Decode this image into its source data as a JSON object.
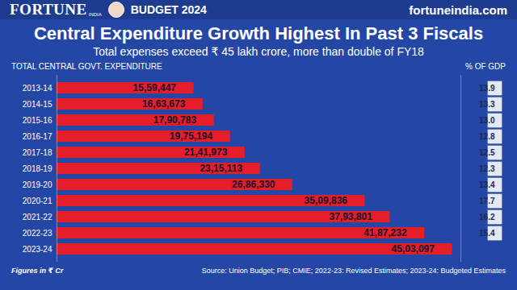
{
  "header": {
    "brand": "FORTUNE",
    "brand_sub": "INDIA",
    "tag": "BUDGET 2024",
    "site": "fortuneindia.com"
  },
  "chart_data": {
    "type": "bar",
    "orientation": "horizontal",
    "title": "Central Expenditure Growth Highest In Past 3 Fiscals",
    "subtitle": "Total expenses exceed ₹ 45 lakh crore, more than double of FY18",
    "x_label": "TOTAL CENTRAL GOVT. EXPENDITURE",
    "categories": [
      "2013-14",
      "2014-15",
      "2015-16",
      "2016-17",
      "2017-18",
      "2018-19",
      "2019-20",
      "2020-21",
      "2021-22",
      "2022-23",
      "2023-24"
    ],
    "values": [
      1559447,
      1663673,
      1790783,
      1975194,
      2141973,
      2315113,
      2686330,
      3509836,
      3793801,
      4187232,
      4503097
    ],
    "value_labels": [
      "15,59,447",
      "16,63,673",
      "17,90,783",
      "19,75,194",
      "21,41,973",
      "23,15,113",
      "26,86,330",
      "35,09,836",
      "37,93,801",
      "41,87,232",
      "45,03,097"
    ],
    "color": "#e61e2a",
    "data_labels": true,
    "xlim": [
      0,
      4600000
    ],
    "tick_labels": "y",
    "grid": false,
    "gdp_share": {
      "label": "% OF GDP",
      "values": [
        13.9,
        13.3,
        13.0,
        12.8,
        12.5,
        12.3,
        13.4,
        17.7,
        16.2,
        15.4,
        null
      ],
      "value_labels": [
        "13.9",
        "13.3",
        "13.0",
        "12.8",
        "12.5",
        "12.3",
        "13.4",
        "17.7",
        "16.2",
        "15.4",
        null
      ]
    },
    "units_note": "Figures in ₹ Cr",
    "source": "Source: Union Budget; PIB; CMIE; 2022-23: Revised Estimates; 2023-24: Budgeted Estimates"
  }
}
